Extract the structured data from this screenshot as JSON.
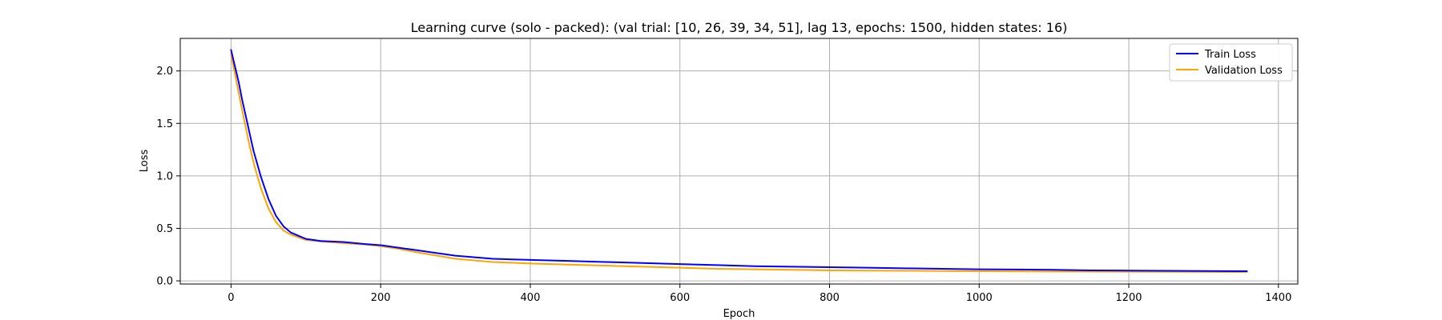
{
  "chart_data": {
    "type": "line",
    "title": "Learning curve (solo - packed): (val trial: [10, 26, 39, 34, 51], lag 13, epochs: 1500, hidden states: 16)",
    "xlabel": "Epoch",
    "ylabel": "Loss",
    "xlim": [
      -67.9,
      1425.9
    ],
    "ylim": [
      -0.03,
      2.31
    ],
    "xticks": [
      0,
      200,
      400,
      600,
      800,
      1000,
      1200,
      1400
    ],
    "yticks": [
      0.0,
      0.5,
      1.0,
      1.5,
      2.0
    ],
    "xtick_labels": [
      "0",
      "200",
      "400",
      "600",
      "800",
      "1000",
      "1200",
      "1400"
    ],
    "ytick_labels": [
      "0.0",
      "0.5",
      "1.0",
      "1.5",
      "2.0"
    ],
    "grid": true,
    "legend": "top-right",
    "series": [
      {
        "name": "Train Loss",
        "color": "#0000ff",
        "x": [
          0,
          5,
          10,
          15,
          20,
          25,
          30,
          40,
          50,
          60,
          70,
          80,
          90,
          100,
          120,
          150,
          180,
          200,
          220,
          250,
          280,
          300,
          350,
          400,
          450,
          500,
          550,
          600,
          650,
          700,
          750,
          800,
          850,
          900,
          950,
          1000,
          1050,
          1100,
          1150,
          1200,
          1250,
          1300,
          1358
        ],
        "y": [
          2.2,
          2.05,
          1.9,
          1.72,
          1.56,
          1.4,
          1.24,
          0.99,
          0.78,
          0.62,
          0.52,
          0.46,
          0.43,
          0.4,
          0.38,
          0.37,
          0.35,
          0.34,
          0.32,
          0.29,
          0.26,
          0.24,
          0.21,
          0.2,
          0.19,
          0.18,
          0.17,
          0.16,
          0.15,
          0.14,
          0.135,
          0.13,
          0.125,
          0.12,
          0.115,
          0.11,
          0.108,
          0.105,
          0.1,
          0.098,
          0.096,
          0.094,
          0.092
        ]
      },
      {
        "name": "Validation Loss",
        "color": "#ffa500",
        "x": [
          0,
          5,
          10,
          15,
          20,
          25,
          30,
          40,
          50,
          60,
          70,
          80,
          90,
          100,
          120,
          150,
          180,
          200,
          220,
          250,
          280,
          300,
          350,
          400,
          450,
          500,
          550,
          600,
          650,
          700,
          750,
          800,
          850,
          900,
          950,
          1000,
          1050,
          1100,
          1150,
          1200,
          1250,
          1300,
          1358
        ],
        "y": [
          2.16,
          1.98,
          1.8,
          1.62,
          1.45,
          1.28,
          1.13,
          0.88,
          0.69,
          0.56,
          0.48,
          0.44,
          0.415,
          0.39,
          0.375,
          0.36,
          0.345,
          0.33,
          0.31,
          0.27,
          0.235,
          0.21,
          0.18,
          0.165,
          0.155,
          0.145,
          0.135,
          0.125,
          0.115,
          0.11,
          0.105,
          0.1,
          0.098,
          0.096,
          0.094,
          0.092,
          0.09,
          0.089,
          0.088,
          0.087,
          0.086,
          0.085,
          0.084
        ]
      }
    ]
  }
}
